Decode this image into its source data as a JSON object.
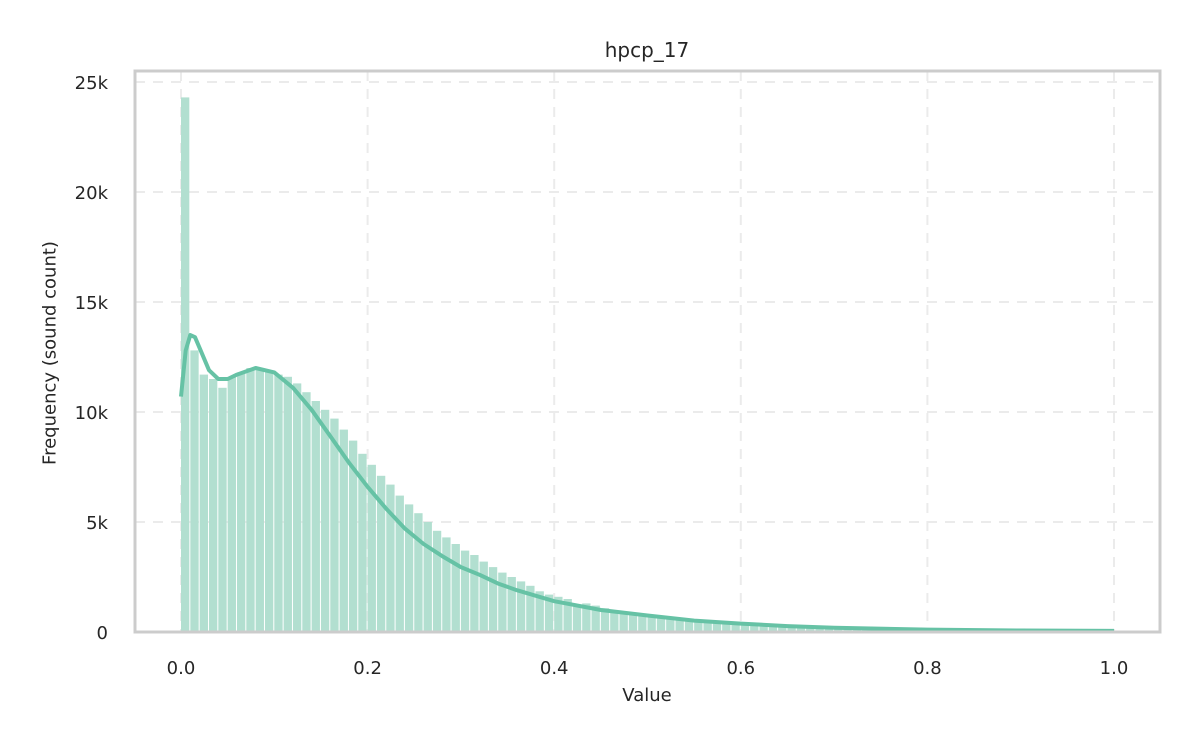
{
  "chart_data": {
    "type": "bar",
    "title": "hpcp_17",
    "xlabel": "Value",
    "ylabel": "Frequency (sound count)",
    "xlim": [
      -0.05,
      1.05
    ],
    "ylim": [
      0,
      25500
    ],
    "x_ticks": [
      "0.0",
      "0.2",
      "0.4",
      "0.6",
      "0.8",
      "1.0"
    ],
    "y_ticks": [
      "0",
      "5k",
      "10k",
      "15k",
      "20k",
      "25k"
    ],
    "grid": true,
    "bin_width": 0.01,
    "bin_start": 0.0,
    "bar_color": "#b2dfd0",
    "kde_color": "#66c2a5",
    "kde_overlay": true,
    "values": [
      24300,
      12800,
      11700,
      11500,
      11100,
      11600,
      11800,
      12000,
      12000,
      11900,
      11700,
      11600,
      11300,
      10900,
      10500,
      10100,
      9700,
      9200,
      8700,
      8100,
      7600,
      7100,
      6700,
      6200,
      5800,
      5400,
      5000,
      4600,
      4300,
      4000,
      3700,
      3500,
      3200,
      2950,
      2700,
      2500,
      2300,
      2100,
      1850,
      1700,
      1600,
      1500,
      1150,
      1300,
      1200,
      1080,
      980,
      900,
      830,
      760,
      700,
      640,
      590,
      540,
      500,
      460,
      420,
      390,
      360,
      330,
      300,
      280,
      260,
      240,
      220,
      200,
      185,
      170,
      160,
      150,
      140,
      130,
      120,
      112,
      105,
      98,
      92,
      86,
      80,
      75,
      70,
      66,
      62,
      58,
      55,
      52,
      49,
      46,
      44,
      42,
      40,
      38,
      36,
      34,
      33,
      32,
      31,
      30,
      29,
      80
    ],
    "kde": {
      "x": [
        0.0,
        0.005,
        0.01,
        0.015,
        0.02,
        0.03,
        0.04,
        0.05,
        0.06,
        0.08,
        0.1,
        0.12,
        0.14,
        0.16,
        0.18,
        0.2,
        0.22,
        0.24,
        0.26,
        0.28,
        0.3,
        0.32,
        0.34,
        0.36,
        0.38,
        0.4,
        0.45,
        0.5,
        0.55,
        0.6,
        0.65,
        0.7,
        0.8,
        0.9,
        1.0
      ],
      "y": [
        10700,
        12800,
        13500,
        13400,
        12900,
        11900,
        11500,
        11500,
        11700,
        12000,
        11800,
        11100,
        10100,
        8900,
        7700,
        6600,
        5600,
        4700,
        4000,
        3450,
        2950,
        2600,
        2200,
        1900,
        1650,
        1400,
        1000,
        750,
        520,
        380,
        270,
        190,
        110,
        70,
        50
      ]
    }
  }
}
